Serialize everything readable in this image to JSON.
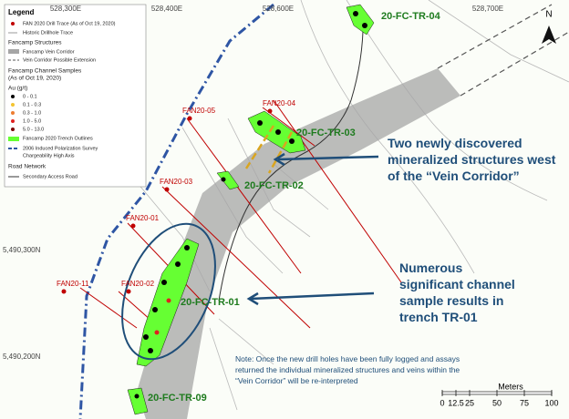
{
  "grid_labels": {
    "top": [
      "528,300E",
      "528,400E",
      "528,600E",
      "528,700E"
    ],
    "left": [
      "5,490,300N",
      "5,490,200N"
    ]
  },
  "north": "N",
  "legend": {
    "title": "Legend",
    "items": [
      "FAN 2020 Drill Trace (As of Oct 19, 2020)",
      "Historic Drillhole Trace",
      "Fancamp Structures",
      "Fancamp Vein Corridor",
      "Vein Corridor Possible Extension",
      "Fancamp Channel Samples",
      "(As of Oct 19, 2020)",
      "Au (g/t)",
      "0 - 0.1",
      "0.1 - 0.3",
      "0.3 - 1.0",
      "1.0 - 5.0",
      "5.0 - 13.0",
      "Fancamp 2020 Trench Outlines",
      "2006 Induced Polarization Survey",
      "Chargeability High Axis",
      "Road Network",
      "Secondary Access Road"
    ]
  },
  "drill_holes": [
    "FAN20-05",
    "FAN20-04",
    "FAN20-03",
    "FAN20-01",
    "FAN20-11",
    "FAN20-02"
  ],
  "trenches": [
    "20-FC-TR-04",
    "20-FC-TR-03",
    "20-FC-TR-02",
    "20-FC-TR-01",
    "20-FC-TR-09"
  ],
  "callouts": [
    "Two newly discovered mineralized structures west of the “Vein Corridor”",
    "Numerous significant channel sample results in trench TR-01"
  ],
  "note": "Note: Once the new drill holes have been fully logged and assays returned the individual mineralized structures and veins within the “Vein Corridor” will be re-interpreted",
  "scale": {
    "title": "Meters",
    "ticks": [
      0,
      12.5,
      25,
      50,
      75,
      100
    ]
  }
}
